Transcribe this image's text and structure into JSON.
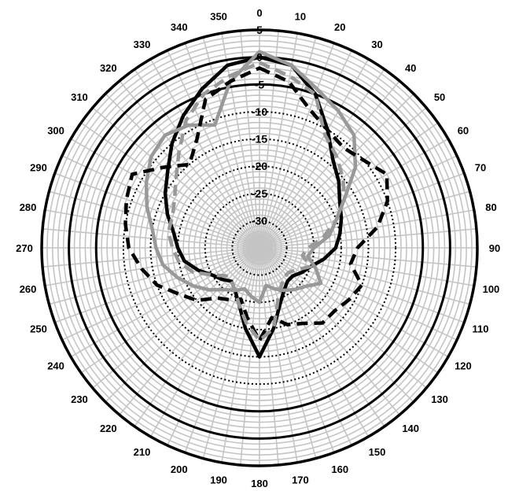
{
  "chart_data": {
    "type": "polar-line",
    "title": "",
    "angle_unit": "degrees",
    "angle_direction": "clockwise",
    "angle_zero": "top",
    "angle_ticks": [
      "0",
      "10",
      "20",
      "30",
      "40",
      "50",
      "60",
      "70",
      "80",
      "90",
      "100",
      "110",
      "120",
      "130",
      "140",
      "150",
      "160",
      "170",
      "180",
      "190",
      "200",
      "210",
      "220",
      "230",
      "240",
      "250",
      "260",
      "270",
      "280",
      "290",
      "300",
      "310",
      "320",
      "330",
      "340",
      "350"
    ],
    "radial_range": [
      -35,
      5
    ],
    "radial_ticks": [
      "5",
      "0",
      "-5",
      "-10",
      "-15",
      "-20",
      "-25",
      "-30"
    ],
    "grid": true,
    "legend": "none",
    "series": [
      {
        "style": "solid",
        "color": "#000000",
        "theta": [
          0,
          10,
          20,
          30,
          40,
          50,
          60,
          70,
          80,
          90,
          100,
          110,
          120,
          130,
          140,
          150,
          160,
          170,
          180,
          190,
          200,
          210,
          220,
          230,
          240,
          250,
          260,
          270,
          280,
          290,
          300,
          310,
          320,
          330,
          340,
          350
        ],
        "r": [
          0,
          -1,
          -5,
          -10,
          -14,
          -16,
          -18,
          -19,
          -20,
          -21,
          -23,
          -25,
          -26,
          -27,
          -27,
          -26,
          -24,
          -20,
          -15,
          -20,
          -24,
          -26,
          -27,
          -26,
          -25,
          -23,
          -21,
          -20,
          -19,
          -17,
          -15,
          -13,
          -10,
          -7,
          -4,
          -1
        ]
      },
      {
        "style": "solid",
        "color": "#999999",
        "theta": [
          0,
          10,
          20,
          30,
          40,
          50,
          60,
          70,
          80,
          90,
          100,
          110,
          120,
          130,
          140,
          150,
          160,
          170,
          180,
          190,
          200,
          210,
          220,
          230,
          240,
          250,
          260,
          270,
          280,
          290,
          300,
          310,
          320,
          330,
          340,
          350
        ],
        "r": [
          1,
          -1,
          -4,
          -6,
          -8,
          -12,
          -17,
          -20,
          -22,
          -25,
          -26,
          -24,
          -22,
          -24,
          -25,
          -26,
          -27,
          -28,
          -25,
          -26,
          -27,
          -26,
          -25,
          -23,
          -21,
          -19,
          -17,
          -16,
          -15,
          -13,
          -11,
          -9,
          -8,
          -9,
          -11,
          -4
        ]
      },
      {
        "style": "dashed",
        "color": "#000000",
        "theta": [
          0,
          10,
          20,
          30,
          40,
          50,
          60,
          70,
          80,
          90,
          100,
          110,
          120,
          130,
          140,
          150,
          160,
          170,
          180,
          190,
          200,
          210,
          220,
          230,
          240,
          250,
          260,
          270,
          280,
          290,
          300,
          310,
          320,
          330,
          340,
          350
        ],
        "r": [
          -2,
          -4,
          -8,
          -10,
          -11,
          -10,
          -8,
          -10,
          -13,
          -17,
          -18,
          -15,
          -16,
          -17,
          -17,
          -19,
          -20,
          -22,
          -18,
          -22,
          -25,
          -24,
          -23,
          -20,
          -18,
          -15,
          -13,
          -11,
          -10,
          -9,
          -8,
          -12,
          -15,
          -12,
          -6,
          -4
        ]
      },
      {
        "style": "dashed",
        "color": "#999999",
        "theta": [
          0,
          10,
          20,
          30,
          40,
          50,
          60,
          70,
          80,
          90,
          100,
          110,
          120,
          130,
          140,
          150,
          160,
          170,
          180,
          190,
          200,
          210,
          220,
          230,
          240,
          250,
          260,
          270,
          280,
          290,
          300,
          310,
          320,
          330,
          340,
          350
        ],
        "r": [
          -1,
          -3,
          -5,
          -11,
          -13,
          -15,
          -17,
          -20,
          -23,
          -26,
          -27,
          -25,
          -27,
          -28,
          -28,
          -27,
          -25,
          -20,
          -18,
          -21,
          -24,
          -26,
          -27,
          -27,
          -25,
          -22,
          -20,
          -19,
          -18,
          -18,
          -17,
          -15,
          -12,
          -8,
          -5,
          -3
        ]
      }
    ]
  }
}
